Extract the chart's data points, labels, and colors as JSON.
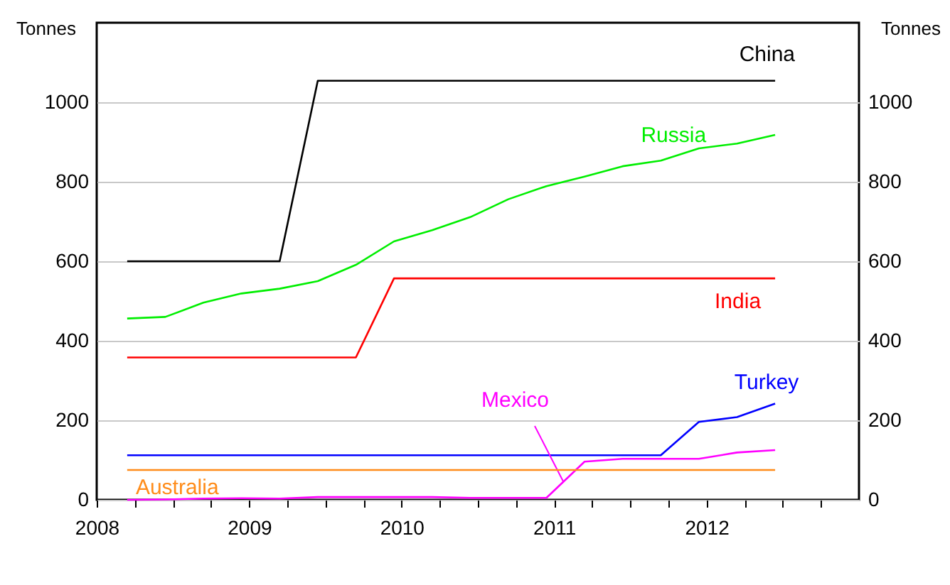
{
  "chart_data": {
    "type": "line",
    "ylabel": "Tonnes",
    "y2label": "Tonnes",
    "xlim": [
      2008,
      2013
    ],
    "ylim": [
      0,
      1200
    ],
    "y2lim": [
      0,
      1200
    ],
    "xticks": [
      2008,
      {
        "value": 2008.25,
        "label": null
      },
      {
        "value": 2008.5,
        "label": null
      },
      {
        "value": 2008.75,
        "label": null
      },
      2009,
      {
        "value": 2009.25,
        "label": null
      },
      {
        "value": 2009.5,
        "label": null
      },
      {
        "value": 2009.75,
        "label": null
      },
      2010,
      {
        "value": 2010.25,
        "label": null
      },
      {
        "value": 2010.5,
        "label": null
      },
      {
        "value": 2010.75,
        "label": null
      },
      2011,
      {
        "value": 2011.25,
        "label": null
      },
      {
        "value": 2011.5,
        "label": null
      },
      {
        "value": 2011.75,
        "label": null
      },
      2012,
      {
        "value": 2012.25,
        "label": null
      },
      {
        "value": 2012.5,
        "label": null
      },
      {
        "value": 2012.75,
        "label": null
      }
    ],
    "yticks": [
      0,
      200,
      400,
      600,
      800,
      1000
    ],
    "y2ticks": [
      0,
      200,
      400,
      600,
      800,
      1000
    ],
    "grid": "y",
    "x": [
      2008.2,
      2008.45,
      2008.7,
      2008.95,
      2009.2,
      2009.45,
      2009.7,
      2009.95,
      2010.2,
      2010.45,
      2010.7,
      2010.95,
      2011.2,
      2011.45,
      2011.7,
      2011.95,
      2012.2,
      2012.45
    ],
    "series": [
      {
        "name": "China",
        "color": "#000000",
        "values": [
          600,
          600,
          600,
          600,
          600,
          1054,
          1054,
          1054,
          1054,
          1054,
          1054,
          1054,
          1054,
          1054,
          1054,
          1054,
          1054,
          1054
        ]
      },
      {
        "name": "Russia",
        "color": "#00ee00",
        "values": [
          456,
          460,
          496,
          519,
          531,
          550,
          591,
          650,
          678,
          711,
          756,
          789,
          813,
          839,
          853,
          884,
          896,
          918
        ]
      },
      {
        "name": "India",
        "color": "#ff0000",
        "values": [
          358,
          358,
          358,
          358,
          358,
          358,
          358,
          557,
          557,
          557,
          557,
          557,
          557,
          557,
          557,
          557,
          557,
          557
        ]
      },
      {
        "name": "Turkey",
        "color": "#0000ff",
        "values": [
          112,
          112,
          112,
          112,
          112,
          112,
          112,
          112,
          112,
          112,
          112,
          112,
          112,
          112,
          112,
          196,
          208,
          242
        ]
      },
      {
        "name": "Mexico",
        "color": "#ff00ff",
        "values": [
          0,
          1,
          3,
          4,
          3,
          7,
          7,
          7,
          7,
          5,
          5,
          5,
          96,
          103,
          103,
          103,
          119,
          125
        ]
      },
      {
        "name": "Australia",
        "color": "#ff8c1a",
        "values": [
          75,
          75,
          75,
          75,
          75,
          75,
          75,
          75,
          75,
          75,
          75,
          75,
          75,
          75,
          75,
          75,
          75,
          75
        ]
      }
    ]
  }
}
